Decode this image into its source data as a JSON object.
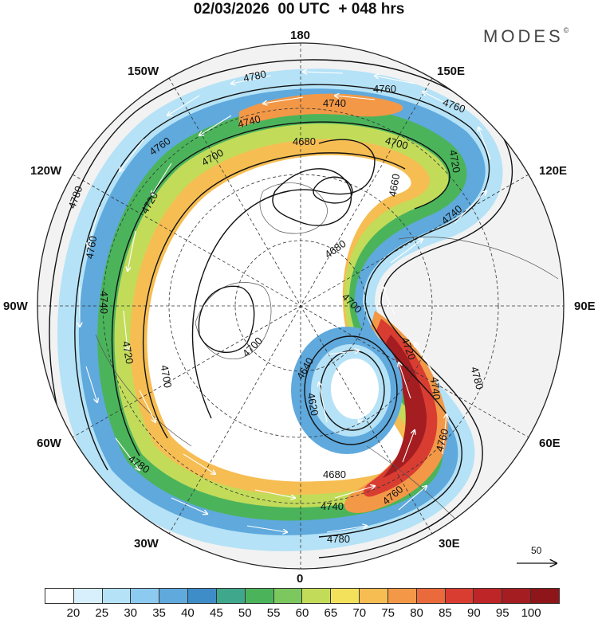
{
  "header": {
    "title": "02/03/2026  00 UTC  + 048 hrs",
    "brand": "MODES",
    "brand_mark": "©"
  },
  "map": {
    "projection": "north-polar-stereographic",
    "longitude_labels": [
      "180",
      "150E",
      "120E",
      "90E",
      "60E",
      "30E",
      "0",
      "30W",
      "60W",
      "90W",
      "120W",
      "150W"
    ],
    "contour_labels": [
      "4780",
      "4760",
      "4740",
      "4720",
      "4700",
      "4680",
      "4660",
      "4640",
      "4620"
    ],
    "land_color": "#f2f2f2",
    "wind_field": "shaded wind speed with white streamline arrows",
    "height_field": "black height contours"
  },
  "vector_reference": {
    "value": "50"
  },
  "colorbar": {
    "ticks": [
      "20",
      "25",
      "30",
      "35",
      "40",
      "45",
      "50",
      "55",
      "60",
      "65",
      "70",
      "75",
      "80",
      "85",
      "90",
      "95",
      "100"
    ],
    "colors": [
      "#ffffff",
      "#d8f0fb",
      "#b5e2f6",
      "#8dcaf0",
      "#5fa9dd",
      "#3e8cc8",
      "#3fa78c",
      "#4bb45b",
      "#7cc85e",
      "#c2dc5a",
      "#f4e15b",
      "#f6bd52",
      "#f39847",
      "#ea6a3b",
      "#d93d32",
      "#bd2526",
      "#a41d21",
      "#8e1519"
    ]
  }
}
